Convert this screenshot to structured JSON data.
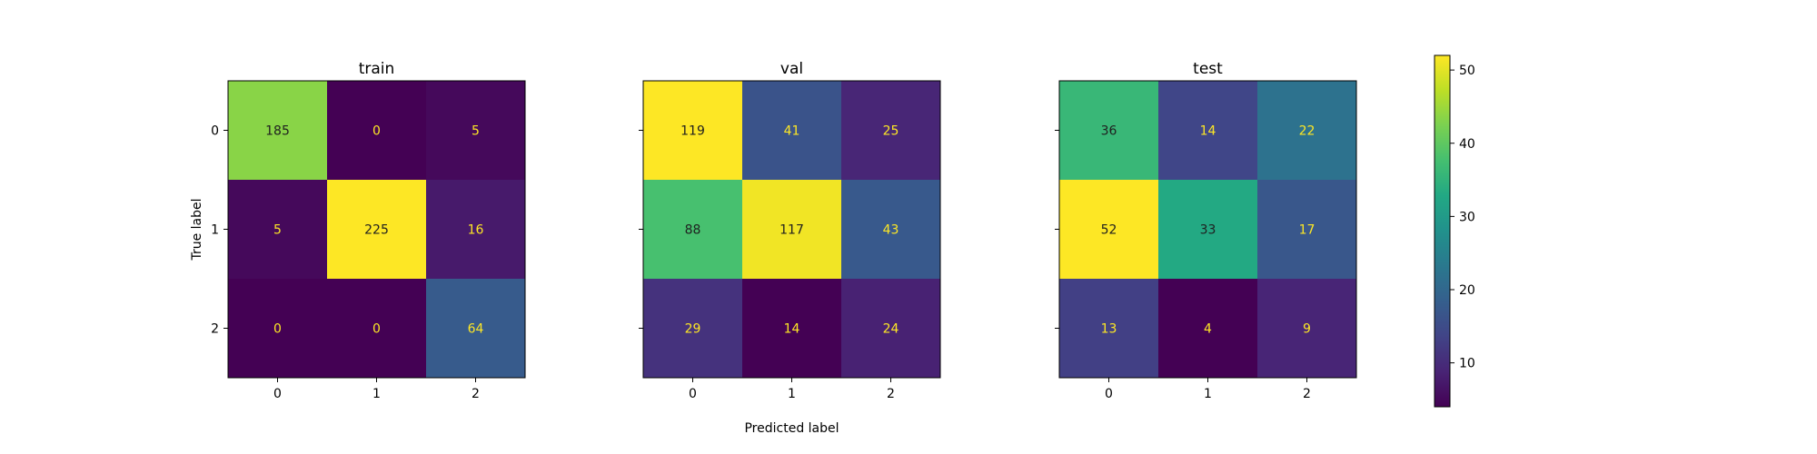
{
  "chart_data": [
    {
      "type": "heatmap",
      "title": "train",
      "ylabel": "True label",
      "xlabel": "",
      "x_categories": [
        "0",
        "1",
        "2"
      ],
      "y_categories": [
        "0",
        "1",
        "2"
      ],
      "values": [
        [
          185,
          0,
          5
        ],
        [
          5,
          225,
          16
        ],
        [
          0,
          0,
          64
        ]
      ],
      "color_scale": "viridis",
      "color_range": [
        0,
        225
      ],
      "show_y_tick_labels": true
    },
    {
      "type": "heatmap",
      "title": "val",
      "ylabel": "",
      "xlabel": "Predicted label",
      "x_categories": [
        "0",
        "1",
        "2"
      ],
      "y_categories": [
        "0",
        "1",
        "2"
      ],
      "values": [
        [
          119,
          41,
          25
        ],
        [
          88,
          117,
          43
        ],
        [
          29,
          14,
          24
        ]
      ],
      "color_scale": "viridis",
      "color_range": [
        14,
        119
      ],
      "show_y_tick_labels": false
    },
    {
      "type": "heatmap",
      "title": "test",
      "ylabel": "",
      "xlabel": "",
      "x_categories": [
        "0",
        "1",
        "2"
      ],
      "y_categories": [
        "0",
        "1",
        "2"
      ],
      "values": [
        [
          36,
          14,
          22
        ],
        [
          52,
          33,
          17
        ],
        [
          13,
          4,
          9
        ]
      ],
      "color_scale": "viridis",
      "color_range": [
        4,
        52
      ],
      "show_y_tick_labels": false
    }
  ],
  "colorbar": {
    "range": [
      4,
      52
    ],
    "ticks": [
      "10",
      "20",
      "30",
      "40",
      "50"
    ],
    "tick_values": [
      10,
      20,
      30,
      40,
      50
    ],
    "color_scale": "viridis"
  }
}
